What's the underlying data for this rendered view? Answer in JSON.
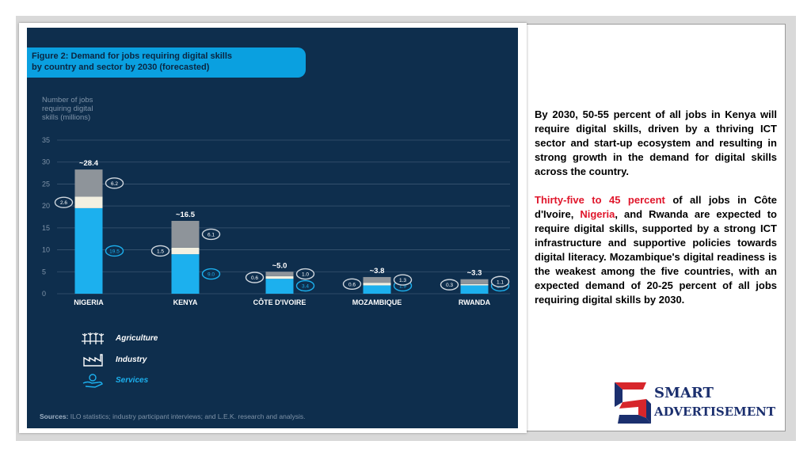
{
  "figure": {
    "title_line1": "Figure 2: Demand for jobs requiring digital skills",
    "title_line2": "by country and sector by 2030 (forecasted)",
    "sources_label": "Sources:",
    "sources_text": "ILO statistics; industry participant interviews; and L.E.K. research and analysis."
  },
  "chart_data": {
    "type": "bar",
    "stacked": true,
    "ylabel_lines": [
      "Number of jobs",
      "requiring digital",
      "skills (millions)"
    ],
    "ylim": [
      0,
      35
    ],
    "yticks": [
      0,
      5,
      10,
      15,
      20,
      25,
      30,
      35
    ],
    "categories": [
      "NIGERIA",
      "KENYA",
      "CÔTE D'IVOIRE",
      "MOZAMBIQUE",
      "RWANDA"
    ],
    "totals": [
      "~28.4",
      "~16.5",
      "~5.0",
      "~3.8",
      "~3.3"
    ],
    "series": [
      {
        "name": "Services",
        "values": [
          19.5,
          9.0,
          3.4,
          1.9,
          1.9
        ],
        "labels": [
          "19.5",
          "9.0",
          "3.4",
          "1.9",
          "1.9"
        ],
        "color": "#1cb0ee"
      },
      {
        "name": "Industry",
        "values": [
          2.6,
          1.5,
          0.6,
          0.6,
          0.3
        ],
        "labels": [
          "2.6",
          "1.5",
          "0.6",
          "0.6",
          "0.3"
        ],
        "color": "#f3f0e1"
      },
      {
        "name": "Agriculture",
        "values": [
          6.2,
          6.1,
          1.0,
          1.3,
          1.1
        ],
        "labels": [
          "6.2",
          "6.1",
          "1.0",
          "1.3",
          "1.1"
        ],
        "color": "#8e949a"
      }
    ],
    "legend": [
      "Agriculture",
      "Industry",
      "Services"
    ],
    "grid": true
  },
  "text": {
    "p1": "By 2030, 50-55 percent of all jobs in Kenya will require digital skills, driven by a thriving ICT sector and start-up ecosystem and resulting in strong growth in the demand for digital skills across the country.",
    "p2_red1": "Thirty-five to 45 percent",
    "p2_part1": " of all jobs in Côte d'Ivoire, ",
    "p2_red2": "Nigeria",
    "p2_part2": ", and Rwanda are expected to require digital skills, supported by a strong ICT infrastructure and supportive policies towards digital literacy. Mozambique's digital readiness is the weakest among the five countries, with an expected demand of 20-25 percent of all jobs requiring digital skills by 2030."
  },
  "logo": {
    "line1": "SMART",
    "line2": "ADVERTISEMENT",
    "red": "#d7262b",
    "navy": "#1b2f6e"
  }
}
